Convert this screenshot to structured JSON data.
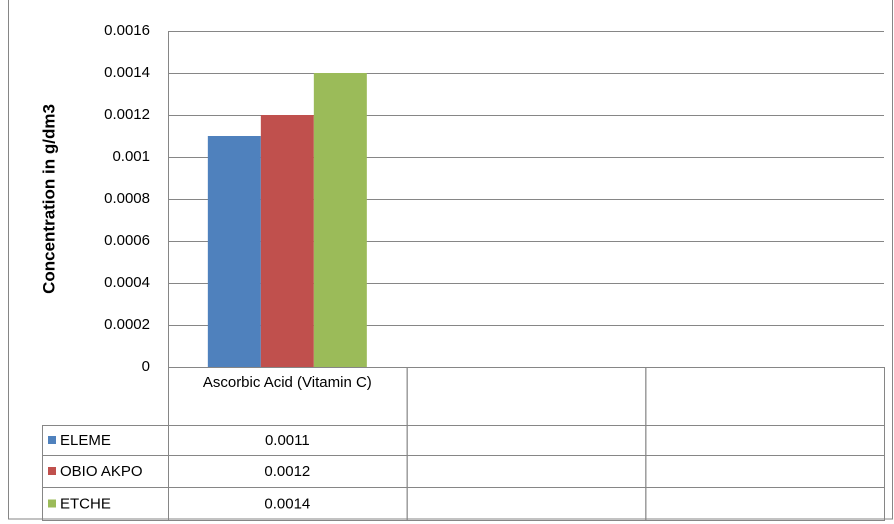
{
  "chart_data": {
    "type": "bar",
    "y_label": "Concentration in g/dm3",
    "categories": [
      "Ascorbic Acid (Vitamin C)",
      null,
      null
    ],
    "series": [
      {
        "name": "ELEME",
        "color": "#4f81bd",
        "values": [
          0.0011,
          null,
          null
        ]
      },
      {
        "name": "OBIO AKPO",
        "color": "#c0504d",
        "values": [
          0.0012,
          null,
          null
        ]
      },
      {
        "name": "ETCHE",
        "color": "#9bbb59",
        "values": [
          0.0014,
          null,
          null
        ]
      }
    ],
    "ylim": [
      0,
      0.0016
    ],
    "yticks": [
      0,
      0.0002,
      0.0004,
      0.0006,
      0.0008,
      0.001,
      0.0012,
      0.0014,
      0.0016
    ],
    "grid": true,
    "data_table": true
  }
}
